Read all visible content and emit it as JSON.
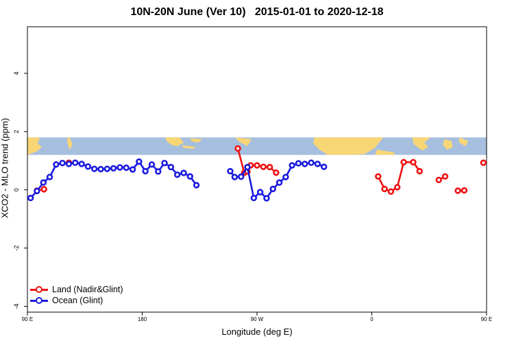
{
  "chart_data": {
    "type": "line",
    "title": "10N-20N June (Ver 10)   2015-01-01 to 2020-12-18",
    "xlabel": "Longitude (deg E)",
    "ylabel": "XCO2 - MLO trend (ppm)",
    "xlim": [
      90,
      450
    ],
    "ylim": [
      -4.2,
      5.6
    ],
    "x_ticks": [
      {
        "value": 90,
        "label": "90 E"
      },
      {
        "value": 180,
        "label": "180"
      },
      {
        "value": 270,
        "label": "90 W"
      },
      {
        "value": 360,
        "label": "0"
      },
      {
        "value": 450,
        "label": "90 E"
      },
      {
        "value": 540,
        "label": "180"
      }
    ],
    "y_ticks": [
      {
        "value": -4,
        "label": "-4"
      },
      {
        "value": -2,
        "label": "-2"
      },
      {
        "value": 0,
        "label": "0"
      },
      {
        "value": 2,
        "label": "2"
      },
      {
        "value": 4,
        "label": "4"
      }
    ],
    "grid": false,
    "legend_position": "bottom-left",
    "map_strip": {
      "ylim": [
        1.2,
        1.8
      ],
      "ocean_color": "#a7bfdf",
      "land_color": "#f8d675"
    },
    "series": [
      {
        "name": "Land (Nadir&Glint)",
        "color": "#ee1111",
        "segments": [
          [
            [
              97.5,
              -0.03
            ],
            [
              103,
              0.02
            ]
          ],
          [
            [
              122.5,
              0.93
            ]
          ],
          [
            [
              255,
              1.42
            ],
            [
              260,
              0.59
            ],
            [
              262.5,
              0.63
            ],
            [
              265,
              0.84
            ],
            [
              270,
              0.84
            ],
            [
              275,
              0.79
            ],
            [
              280,
              0.78
            ],
            [
              285,
              0.59
            ]
          ],
          [
            [
              365,
              0.46
            ],
            [
              370,
              0.03
            ],
            [
              375,
              -0.06
            ],
            [
              380,
              0.09
            ],
            [
              385,
              0.95
            ],
            [
              392.5,
              0.95
            ],
            [
              397.5,
              0.64
            ]
          ],
          [
            [
              412.5,
              0.34
            ],
            [
              417.5,
              0.46
            ]
          ],
          [
            [
              427.5,
              -0.03
            ],
            [
              432.5,
              -0.02
            ]
          ],
          [
            [
              447.5,
              0.93
            ]
          ]
        ]
      },
      {
        "name": "Ocean (Glint)",
        "color": "#1a1ae0",
        "segments": [
          [
            [
              92.5,
              -0.28
            ],
            [
              97.5,
              -0.04
            ],
            [
              102.5,
              0.25
            ],
            [
              107.5,
              0.44
            ],
            [
              112.5,
              0.87
            ],
            [
              117.5,
              0.92
            ],
            [
              122.5,
              0.89
            ],
            [
              127.5,
              0.93
            ],
            [
              132.5,
              0.89
            ],
            [
              137.5,
              0.8
            ],
            [
              142.5,
              0.72
            ],
            [
              147.5,
              0.71
            ],
            [
              152.5,
              0.72
            ],
            [
              157.5,
              0.74
            ],
            [
              162.5,
              0.77
            ],
            [
              167.5,
              0.76
            ],
            [
              172.5,
              0.7
            ],
            [
              177.5,
              0.97
            ],
            [
              182.5,
              0.64
            ],
            [
              187.5,
              0.87
            ],
            [
              192.5,
              0.63
            ],
            [
              197.5,
              0.92
            ],
            [
              202.5,
              0.78
            ],
            [
              207.5,
              0.52
            ],
            [
              212.5,
              0.58
            ],
            [
              217.5,
              0.46
            ],
            [
              222.5,
              0.16
            ]
          ],
          [
            [
              249,
              0.64
            ],
            [
              252.5,
              0.44
            ],
            [
              257.5,
              0.45
            ],
            [
              262.5,
              0.78
            ],
            [
              267.5,
              -0.28
            ],
            [
              272.5,
              -0.08
            ],
            [
              277.5,
              -0.29
            ],
            [
              282.5,
              0.03
            ],
            [
              287.5,
              0.25
            ],
            [
              292.5,
              0.44
            ],
            [
              297.5,
              0.84
            ],
            [
              302.5,
              0.91
            ],
            [
              307.5,
              0.89
            ],
            [
              312.5,
              0.93
            ],
            [
              317.5,
              0.89
            ],
            [
              322.5,
              0.79
            ]
          ]
        ]
      }
    ]
  }
}
